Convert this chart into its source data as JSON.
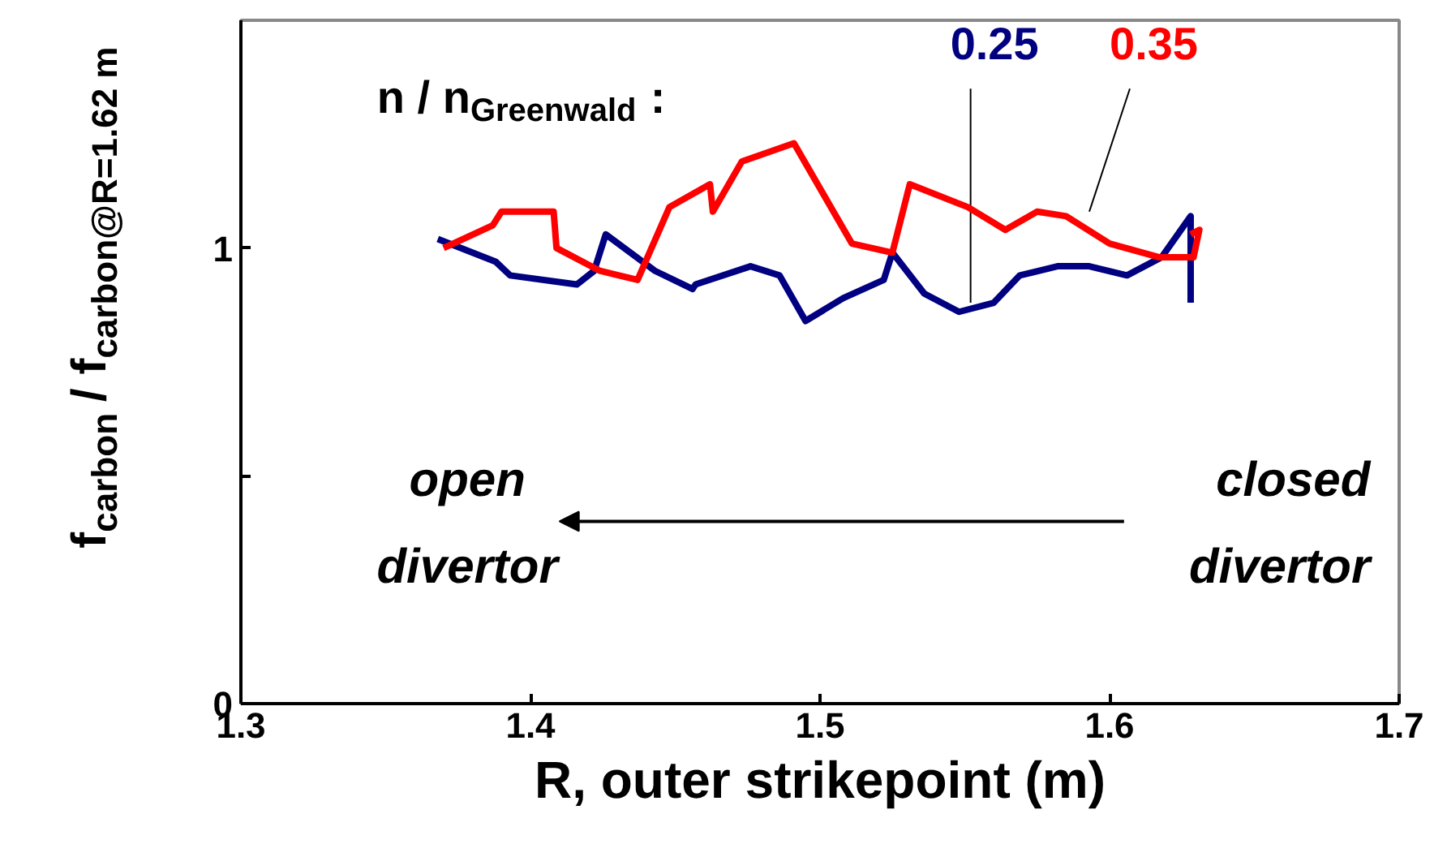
{
  "chart_data": {
    "type": "line",
    "title": "n / n$_{Greenwald}$ :",
    "xlabel": "R, outer strikepoint (m)",
    "ylabel": "f$_{carbon}$ / f$_{carbon@R=1.62 m}$",
    "xlim": [
      1.3,
      1.7
    ],
    "xticks": [
      1.3,
      1.4,
      1.5,
      1.6,
      1.7
    ],
    "ylim": [
      0,
      1.5
    ],
    "yticks": [
      0,
      {
        "value": 0.5,
        "label": null
      },
      1
    ],
    "grid": false,
    "marker": "none",
    "line_style": "solid",
    "annotations": [
      "open divertor",
      "closed divertor"
    ],
    "series": [
      {
        "name": "0.25",
        "color": "#000080",
        "x": [
          1.368,
          1.388,
          1.393,
          1.416,
          1.422,
          1.426,
          1.443,
          1.456,
          1.457,
          1.476,
          1.486,
          1.495,
          1.508,
          1.522,
          1.525,
          1.536,
          1.548,
          1.56,
          1.569,
          1.582,
          1.593,
          1.606,
          1.618,
          1.628,
          1.628
        ],
        "values": [
          1.02,
          0.97,
          0.94,
          0.92,
          0.95,
          1.03,
          0.95,
          0.91,
          0.92,
          0.96,
          0.94,
          0.84,
          0.89,
          0.93,
          0.99,
          0.9,
          0.86,
          0.88,
          0.94,
          0.96,
          0.96,
          0.94,
          0.98,
          1.07,
          0.88
        ]
      },
      {
        "name": "0.35",
        "color": "#ff0000",
        "x": [
          1.37,
          1.387,
          1.39,
          1.408,
          1.409,
          1.424,
          1.437,
          1.448,
          1.462,
          1.463,
          1.473,
          1.491,
          1.511,
          1.525,
          1.531,
          1.551,
          1.564,
          1.575,
          1.585,
          1.6,
          1.617,
          1.629,
          1.631,
          1.628
        ],
        "values": [
          1.0,
          1.05,
          1.08,
          1.08,
          1.0,
          0.95,
          0.93,
          1.09,
          1.14,
          1.08,
          1.19,
          1.23,
          1.01,
          0.99,
          1.14,
          1.09,
          1.04,
          1.08,
          1.07,
          1.01,
          0.98,
          0.98,
          1.04,
          1.03
        ]
      }
    ]
  }
}
